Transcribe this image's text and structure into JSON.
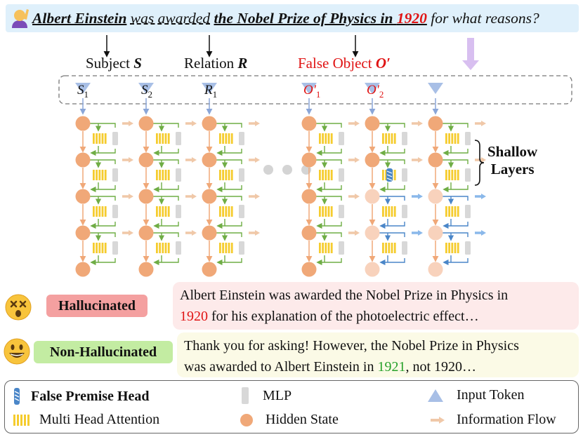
{
  "question": {
    "subject": "Albert Einstein",
    "relation": "was awarded",
    "object_prefix": "the Nobel Prize of Physics in",
    "object_year": "1920",
    "tail": "for what reasons?"
  },
  "labels": {
    "subject_prefix": "Subject",
    "subject_symbol": "S",
    "relation_prefix": "Relation",
    "relation_symbol": "R",
    "false_object_prefix": "False Object",
    "false_object_symbol": "O′"
  },
  "tokens": [
    {
      "base": "S",
      "sub": "1"
    },
    {
      "base": "S",
      "sub": "2"
    },
    {
      "base": "R",
      "sub": "1"
    },
    {
      "base": "O′",
      "sub": "1"
    },
    {
      "base": "O′",
      "sub": "2"
    }
  ],
  "layer_group_label": [
    "Shallow",
    "Layers"
  ],
  "responses": {
    "hallucinated": {
      "tag": "Hallucinated",
      "line1": "Albert Einstein was awarded the Nobel Prize in Physics in",
      "year": "1920",
      "line2_rest": " for his explanation of the photoelectric effect…"
    },
    "non_hallucinated": {
      "tag": "Non-Hallucinated",
      "line1": "Thank you for asking! However, the Nobel Prize in Physics",
      "line2_pre": "was awarded to Albert Einstein in ",
      "year": "1921",
      "line2_post": ", not 1920…"
    }
  },
  "legend": {
    "false_premise_head": "False Premise Head",
    "mlp": "MLP",
    "input_token": "Input Token",
    "multi_head_attention": "Multi Head Attention",
    "hidden_state": "Hidden State",
    "information_flow": "Information Flow"
  },
  "colors": {
    "question_bg": "#dff0fb",
    "hidden_state": "#f0a878",
    "hidden_state_light": "#f8d2bc",
    "attention": "#f5cc2e",
    "mlp": "#d8d8d8",
    "green_flow": "#6fad45",
    "blue_flow": "#4a86c8",
    "input_token": "#a8bfe6",
    "hallucinated_tag": "#f4a0a0",
    "hallucinated_box": "#fdeaea",
    "non_hallucinated_tag": "#c3eca2",
    "non_hallucinated_box": "#fbfae6",
    "highlight_red": "#e01414",
    "highlight_green": "#27a12a"
  }
}
